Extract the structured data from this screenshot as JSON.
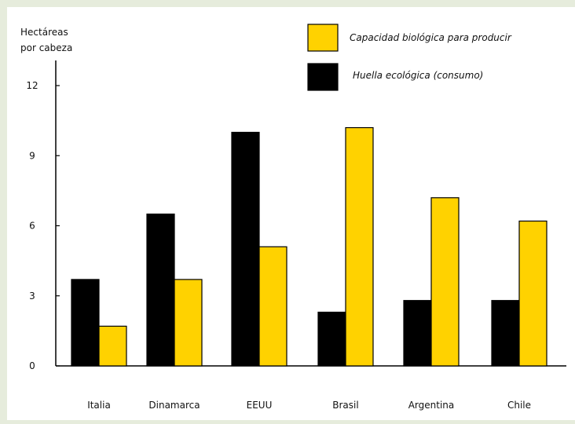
{
  "chart_data": {
    "type": "bar",
    "ylabel_lines": [
      "Hectáreas",
      "por cabeza"
    ],
    "categories": [
      "Italia",
      "Dinamarca",
      "EEUU",
      "Brasil",
      "Argentina",
      "Chile"
    ],
    "series": [
      {
        "name": "Huella ecológica (consumo)",
        "color": "#000000",
        "values": [
          3.7,
          6.5,
          10.0,
          2.3,
          2.8,
          2.8
        ]
      },
      {
        "name": "Capacidad biológica para producir",
        "color": "#ffd200",
        "values": [
          1.7,
          3.7,
          5.1,
          10.2,
          7.2,
          6.2
        ]
      }
    ],
    "ylim": [
      0,
      12
    ],
    "yticks": [
      0,
      3,
      6,
      9,
      12
    ],
    "legend_order": [
      1,
      0
    ],
    "legend_position": "top-right",
    "grid": false
  }
}
